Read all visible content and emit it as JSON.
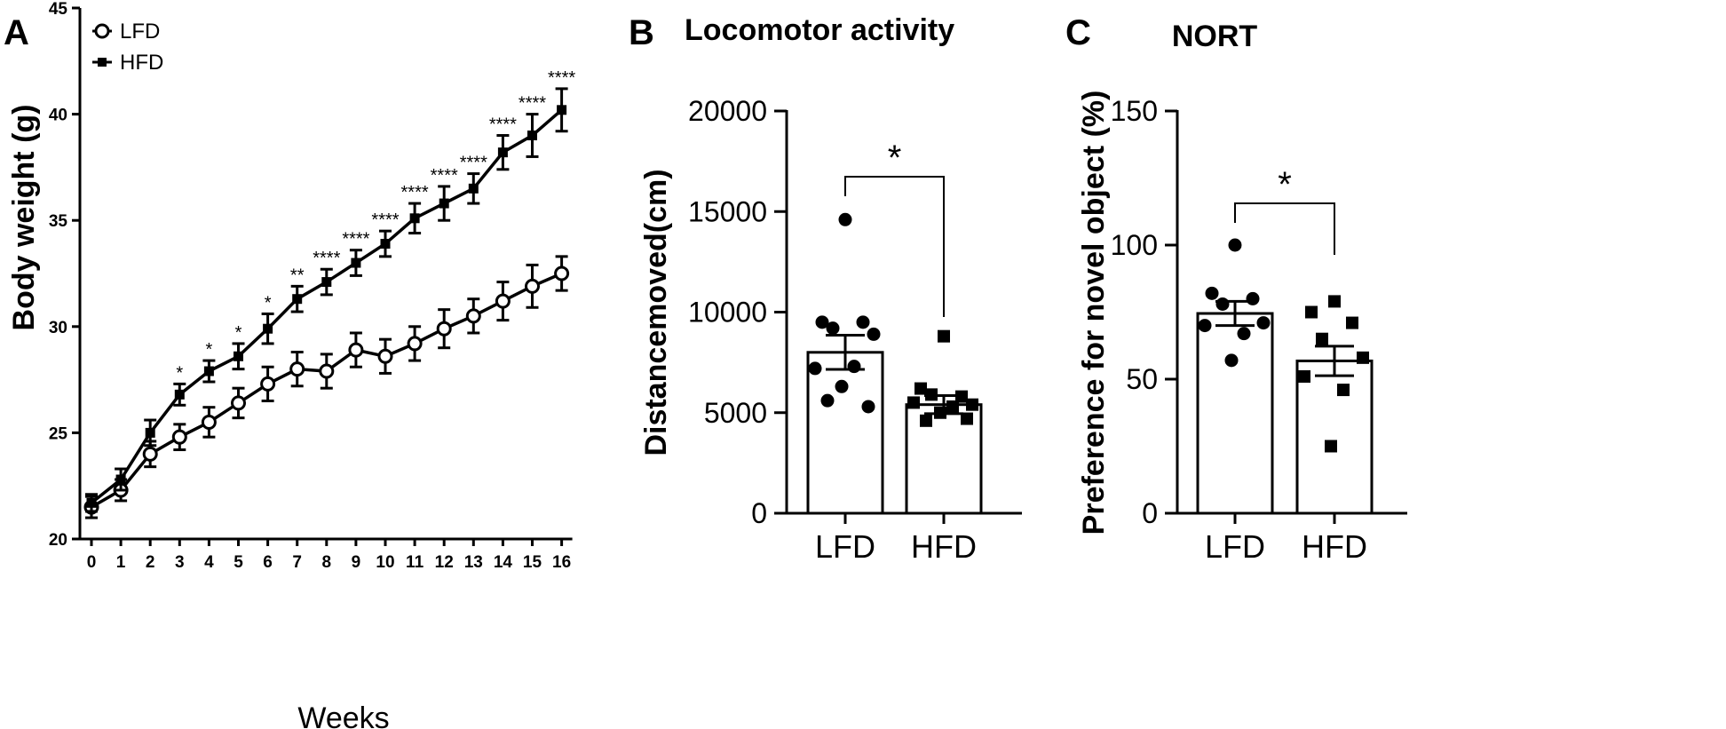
{
  "colors": {
    "ink": "#000000",
    "background": "#ffffff",
    "bar_fill": "#ffffff"
  },
  "chart_data": [
    {
      "panel": "A",
      "type": "line",
      "title": "",
      "xlabel": "Weeks",
      "ylabel": "Body weight (g)",
      "x": [
        0,
        1,
        2,
        3,
        4,
        5,
        6,
        7,
        8,
        9,
        10,
        11,
        12,
        13,
        14,
        15,
        16
      ],
      "xticks": [
        "0",
        "1",
        "2",
        "3",
        "4",
        "5",
        "6",
        "7",
        "8",
        "9",
        "10",
        "11",
        "12",
        "13",
        "14",
        "15",
        "16"
      ],
      "ylim": [
        20,
        45
      ],
      "yticks": [
        "20",
        "25",
        "30",
        "35",
        "40",
        "45"
      ],
      "ytick_values": [
        20,
        25,
        30,
        35,
        40,
        45
      ],
      "legend": {
        "position": "top-left",
        "entries": [
          "LFD",
          "HFD"
        ]
      },
      "series": [
        {
          "name": "LFD",
          "marker": "open-circle",
          "values": [
            21.5,
            22.3,
            24.0,
            24.8,
            25.5,
            26.4,
            27.3,
            28.0,
            27.9,
            28.9,
            28.6,
            29.2,
            29.9,
            30.5,
            31.2,
            31.9,
            32.5
          ],
          "errors": [
            0.5,
            0.5,
            0.6,
            0.6,
            0.7,
            0.7,
            0.8,
            0.8,
            0.8,
            0.8,
            0.8,
            0.8,
            0.9,
            0.8,
            0.9,
            1.0,
            0.8
          ]
        },
        {
          "name": "HFD",
          "marker": "filled-square",
          "values": [
            21.7,
            22.8,
            25.0,
            26.8,
            27.9,
            28.6,
            29.9,
            31.3,
            32.1,
            33.0,
            33.9,
            35.1,
            35.8,
            36.5,
            38.2,
            39.0,
            40.2
          ],
          "errors": [
            0.4,
            0.5,
            0.6,
            0.5,
            0.5,
            0.6,
            0.7,
            0.6,
            0.6,
            0.6,
            0.6,
            0.7,
            0.8,
            0.7,
            0.8,
            1.0,
            1.0
          ]
        }
      ],
      "annotations": [
        "",
        "",
        "",
        "*",
        "*",
        "*",
        "*",
        "**",
        "****",
        "****",
        "****",
        "****",
        "****",
        "****",
        "****",
        "****",
        "****"
      ]
    },
    {
      "panel": "B",
      "type": "bar",
      "title": "Locomotor activity",
      "xlabel": "",
      "ylabel": "Distancemoved(cm)",
      "categories": [
        "LFD",
        "HFD"
      ],
      "ylim": [
        0,
        20000
      ],
      "yticks": [
        "0",
        "5000",
        "10000",
        "15000",
        "20000"
      ],
      "ytick_values": [
        0,
        5000,
        10000,
        15000,
        20000
      ],
      "values": [
        8000,
        5400
      ],
      "errors": [
        850,
        450
      ],
      "points": [
        {
          "group": "LFD",
          "marker": "circle",
          "values": [
            14600,
            9500,
            9500,
            9200,
            8900,
            7200,
            7300,
            6300,
            5300,
            5600
          ]
        },
        {
          "group": "HFD",
          "marker": "square",
          "values": [
            8800,
            6200,
            5800,
            5900,
            5400,
            5500,
            5300,
            5000,
            4700,
            4600
          ]
        }
      ],
      "significance": {
        "label": "*",
        "between": [
          "LFD",
          "HFD"
        ]
      }
    },
    {
      "panel": "C",
      "type": "bar",
      "title": "NORT",
      "xlabel": "",
      "ylabel": "Preference for novel object (%)",
      "categories": [
        "LFD",
        "HFD"
      ],
      "ylim": [
        0,
        150
      ],
      "yticks": [
        "0",
        "50",
        "100",
        "150"
      ],
      "ytick_values": [
        0,
        50,
        100,
        150
      ],
      "values": [
        74.5,
        56.8
      ],
      "errors": [
        4.5,
        5.5
      ],
      "points": [
        {
          "group": "LFD",
          "marker": "circle",
          "values": [
            100,
            82,
            80,
            78,
            71,
            70,
            67,
            57
          ]
        },
        {
          "group": "HFD",
          "marker": "square",
          "values": [
            79,
            75,
            71,
            65,
            58,
            51,
            46,
            25
          ]
        }
      ],
      "significance": {
        "label": "*",
        "between": [
          "LFD",
          "HFD"
        ]
      }
    }
  ],
  "panels": {
    "A": {
      "letter": "A"
    },
    "B": {
      "letter": "B"
    },
    "C": {
      "letter": "C"
    }
  }
}
